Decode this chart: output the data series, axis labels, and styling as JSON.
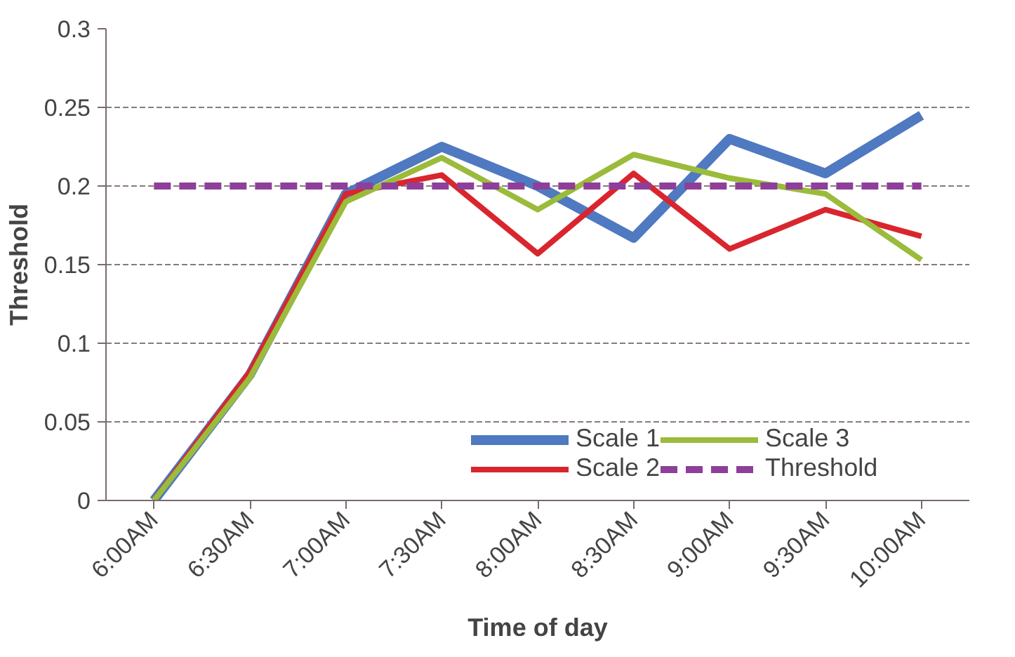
{
  "chart_data": {
    "type": "line",
    "xlabel": "Time of day",
    "ylabel": "Threshold",
    "categories": [
      "6:00AM",
      "6:30AM",
      "7:00AM",
      "7:30AM",
      "8:00AM",
      "8:30AM",
      "9:00AM",
      "9:30AM",
      "10:00AM"
    ],
    "series": [
      {
        "name": "Scale 1",
        "color": "#4f79c0",
        "values": [
          0,
          0.08,
          0.195,
          0.225,
          0.2,
          0.167,
          0.23,
          0.208,
          0.245
        ]
      },
      {
        "name": "Scale 2",
        "color": "#d9262e",
        "values": [
          0,
          0.082,
          0.195,
          0.207,
          0.157,
          0.208,
          0.16,
          0.185,
          0.168
        ]
      },
      {
        "name": "Scale 3",
        "color": "#9bbb3b",
        "values": [
          0,
          0.078,
          0.19,
          0.218,
          0.185,
          0.22,
          0.205,
          0.195,
          0.153
        ]
      },
      {
        "name": "Threshold",
        "color": "#8e3f9a",
        "line_style": "dashed",
        "values": [
          0.2,
          0.2,
          0.2,
          0.2,
          0.2,
          0.2,
          0.2,
          0.2,
          0.2
        ]
      }
    ],
    "ylim": [
      0,
      0.3
    ],
    "yticks": [
      0,
      0.05,
      0.1,
      0.15,
      0.2,
      0.25,
      0.3
    ],
    "grid": "y",
    "legend": "bottom right",
    "marker": "none"
  }
}
